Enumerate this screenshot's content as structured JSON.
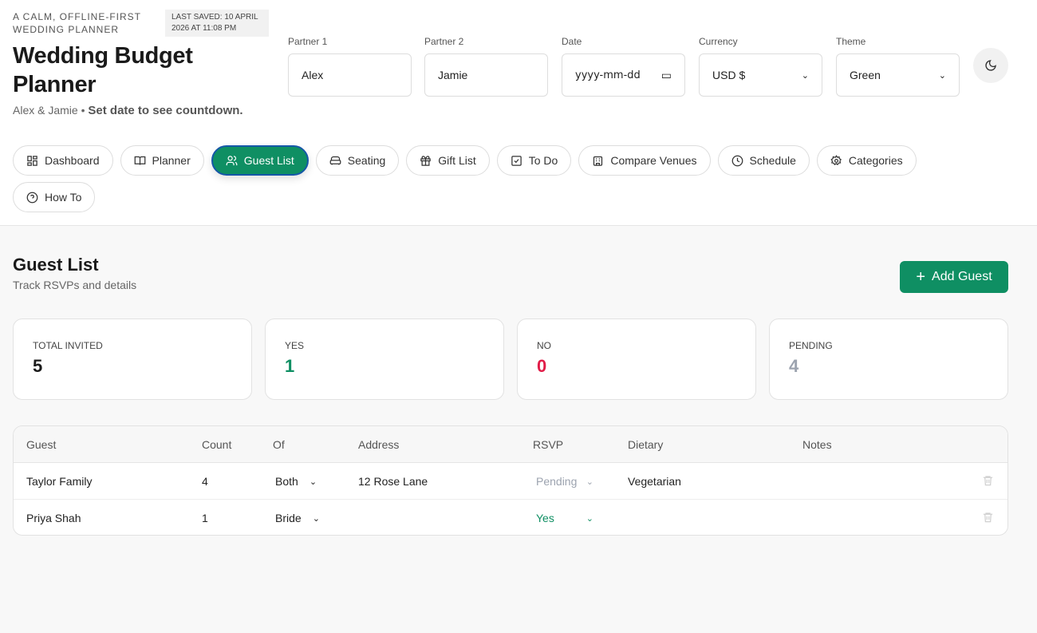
{
  "header": {
    "tagline": "A CALM, OFFLINE-FIRST WEDDING PLANNER",
    "last_saved": "LAST SAVED: 10 APRIL 2026 AT 11:08 PM",
    "title": "Wedding Budget Planner",
    "couple": "Alex & Jamie",
    "bullet": "•",
    "countdown": "Set date to see countdown."
  },
  "fields": [
    {
      "label": "Partner 1",
      "value": "Alex"
    },
    {
      "label": "Partner 2",
      "value": "Jamie"
    },
    {
      "label": "Date",
      "value": "yyyy-mm-dd"
    },
    {
      "label": "Currency",
      "value": "USD $"
    },
    {
      "label": "Theme",
      "value": "Green"
    }
  ],
  "nav": [
    {
      "label": "Dashboard",
      "icon": "dashboard-icon"
    },
    {
      "label": "Planner",
      "icon": "book-icon"
    },
    {
      "label": "Guest List",
      "icon": "users-icon",
      "active": true
    },
    {
      "label": "Seating",
      "icon": "sofa-icon"
    },
    {
      "label": "Gift List",
      "icon": "gift-icon"
    },
    {
      "label": "To Do",
      "icon": "checkbox-icon"
    },
    {
      "label": "Compare Venues",
      "icon": "building-icon"
    },
    {
      "label": "Schedule",
      "icon": "clock-icon"
    },
    {
      "label": "Categories",
      "icon": "gear-icon"
    },
    {
      "label": "How To",
      "icon": "help-icon"
    }
  ],
  "page": {
    "title": "Guest List",
    "subtitle": "Track RSVPs and details",
    "add_label": "Add Guest"
  },
  "stats": [
    {
      "label": "TOTAL INVITED",
      "value": "5",
      "color": "#1a1a1a"
    },
    {
      "label": "YES",
      "value": "1",
      "color": "#0f8f63"
    },
    {
      "label": "NO",
      "value": "0",
      "color": "#e11d48"
    },
    {
      "label": "PENDING",
      "value": "4",
      "color": "#9ca3af"
    }
  ],
  "table": {
    "columns": [
      "Guest",
      "Count",
      "Of",
      "Address",
      "RSVP",
      "Dietary",
      "Notes"
    ],
    "rows": [
      {
        "guest": "Taylor Family",
        "count": "4",
        "of": "Both",
        "address": "12 Rose Lane",
        "rsvp": "Pending",
        "dietary": "Vegetarian",
        "notes": ""
      },
      {
        "guest": "Priya Shah",
        "count": "1",
        "of": "Bride",
        "address": "",
        "rsvp": "Yes",
        "dietary": "",
        "notes": ""
      }
    ]
  },
  "colors": {
    "accent": "#0f8f63",
    "no": "#e11d48",
    "pending": "#9ca3af"
  }
}
